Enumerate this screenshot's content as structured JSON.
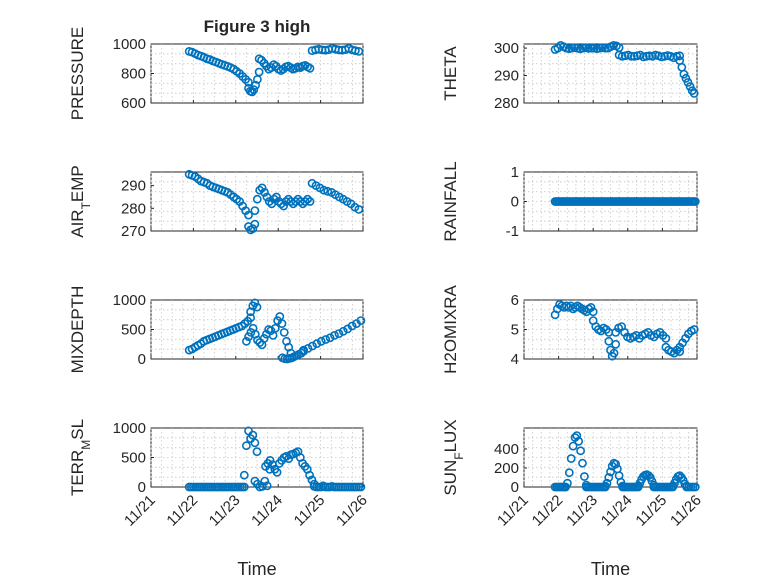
{
  "figure_title": "Figure 3 high",
  "colors": {
    "marker": "#0072BD",
    "axis": "#262626",
    "grid": "#c8c8c8"
  },
  "chart_data": [
    {
      "type": "scatter",
      "ylabel": "PRESSURE",
      "title": "Figure 3 high",
      "ylim": [
        600,
        1000
      ],
      "yticks": [
        600,
        800,
        1000
      ],
      "yticklabels": [
        "600",
        "800",
        "1000"
      ],
      "xlim": [
        0,
        5
      ],
      "grid": true,
      "show_xticklabels": false,
      "segments": [
        {
          "x0": 0.9,
          "x1": 2.3,
          "y": [
            950,
            945,
            935,
            925,
            918,
            910,
            900,
            895,
            885,
            878,
            870,
            862,
            855,
            848,
            840,
            830,
            815,
            800,
            780,
            760,
            740
          ]
        },
        {
          "x0": 2.3,
          "x1": 2.55,
          "y": [
            700,
            680,
            675,
            690,
            720,
            760,
            810
          ]
        },
        {
          "x0": 2.55,
          "x1": 3.75,
          "y": [
            900,
            890,
            870,
            850,
            830,
            840,
            860,
            850,
            830,
            820,
            830,
            845,
            850,
            840,
            830,
            835,
            845,
            840,
            850,
            855,
            845,
            835
          ]
        },
        {
          "x0": 3.8,
          "x1": 4.9,
          "y": [
            955,
            960,
            965,
            960,
            958,
            962,
            970,
            965,
            960,
            958,
            962,
            970,
            960,
            955,
            950
          ]
        }
      ]
    },
    {
      "type": "scatter",
      "ylabel": "THETA",
      "ylim": [
        280,
        301.5
      ],
      "yticks": [
        280,
        290,
        300
      ],
      "yticklabels": [
        "280",
        "290",
        "300"
      ],
      "xlim": [
        0,
        5
      ],
      "grid": true,
      "show_xticklabels": false,
      "segments": [
        {
          "x0": 0.9,
          "x1": 2.75,
          "y": [
            299.5,
            300,
            301,
            300.5,
            300,
            299.8,
            300,
            300.2,
            300,
            299.7,
            300,
            300.2,
            299.9,
            300,
            300,
            299.8,
            300,
            300.2,
            300,
            300,
            300.5,
            301,
            300.8,
            300.2
          ]
        },
        {
          "x0": 2.75,
          "x1": 4.5,
          "y": [
            297.5,
            297,
            297.2,
            297.5,
            297,
            297,
            297.2,
            297.5,
            296.8,
            297,
            297.2,
            297,
            297.5,
            297.2,
            296.8,
            297,
            297.3,
            297,
            296.5,
            297,
            297.2
          ]
        },
        {
          "x0": 4.5,
          "x1": 4.92,
          "y": [
            295.5,
            293,
            290.5,
            289,
            287.5,
            286,
            284.5,
            283.5
          ]
        }
      ]
    },
    {
      "type": "scatter",
      "ylabel": "AIR",
      "ylabel_sub": "T",
      "ylabel_rest": "EMP",
      "ylim": [
        270,
        296
      ],
      "yticks": [
        270,
        280,
        290
      ],
      "yticklabels": [
        "270",
        "280",
        "290"
      ],
      "xlim": [
        0,
        5
      ],
      "grid": true,
      "show_xticklabels": false,
      "segments": [
        {
          "x0": 0.9,
          "x1": 2.3,
          "y": [
            295,
            294.5,
            294,
            293,
            292,
            291.5,
            291,
            290,
            289.5,
            289,
            288.5,
            288,
            287.5,
            287,
            286,
            285,
            284,
            283,
            281,
            279,
            277
          ]
        },
        {
          "x0": 2.3,
          "x1": 2.45,
          "y": [
            272,
            270.5,
            271,
            273
          ]
        },
        {
          "x0": 2.45,
          "x1": 3.75,
          "y": [
            279,
            284,
            288,
            289,
            287,
            285,
            283,
            282,
            284,
            285,
            283,
            282,
            281,
            283,
            284,
            283,
            282,
            283,
            284,
            283,
            282,
            283,
            284,
            283
          ]
        },
        {
          "x0": 3.8,
          "x1": 4.9,
          "y": [
            291,
            290,
            289,
            288,
            287.5,
            287,
            286,
            285,
            284,
            283,
            282,
            280.5,
            279.5
          ]
        }
      ]
    },
    {
      "type": "scatter",
      "ylabel": "RAINFALL",
      "ylim": [
        -1,
        1
      ],
      "yticks": [
        -1,
        0,
        1
      ],
      "yticklabels": [
        "-1",
        "0",
        "1"
      ],
      "xlim": [
        0,
        5
      ],
      "grid": true,
      "show_xticklabels": false,
      "segments": [
        {
          "x0": 0.9,
          "x1": 4.95,
          "y": [
            0,
            0,
            0,
            0,
            0,
            0,
            0,
            0,
            0,
            0,
            0,
            0,
            0,
            0,
            0,
            0,
            0,
            0,
            0,
            0,
            0,
            0,
            0,
            0,
            0,
            0,
            0,
            0,
            0,
            0,
            0,
            0,
            0,
            0,
            0,
            0,
            0,
            0,
            0,
            0,
            0,
            0,
            0,
            0,
            0,
            0,
            0,
            0,
            0,
            0,
            0,
            0,
            0,
            0,
            0,
            0,
            0,
            0,
            0,
            0,
            0,
            0,
            0,
            0,
            0,
            0,
            0,
            0,
            0,
            0,
            0,
            0,
            0,
            0,
            0,
            0,
            0,
            0,
            0,
            0,
            0,
            0,
            0,
            0,
            0,
            0,
            0,
            0,
            0,
            0,
            0
          ]
        }
      ]
    },
    {
      "type": "scatter",
      "ylabel": "MIXDEPTH",
      "ylim": [
        0,
        1000
      ],
      "yticks": [
        0,
        500,
        1000
      ],
      "yticklabels": [
        "0",
        "500",
        "1000"
      ],
      "xlim": [
        0,
        5
      ],
      "grid": true,
      "show_xticklabels": false,
      "segments": [
        {
          "x0": 0.9,
          "x1": 2.35,
          "y": [
            150,
            170,
            200,
            230,
            260,
            300,
            320,
            340,
            360,
            380,
            400,
            420,
            440,
            460,
            480,
            500,
            520,
            540,
            560,
            600,
            640,
            700
          ]
        },
        {
          "x0": 2.35,
          "x1": 2.5,
          "y": [
            800,
            900,
            950,
            880
          ]
        },
        {
          "x0": 2.25,
          "x1": 3.3,
          "y": [
            300,
            380,
            450,
            520,
            420,
            320,
            280,
            240,
            350,
            420,
            500,
            480,
            400,
            520,
            650,
            720,
            600,
            450,
            300,
            200,
            100
          ]
        },
        {
          "x0": 3.1,
          "x1": 3.6,
          "y": [
            20,
            5,
            0,
            10,
            20,
            40,
            60,
            80,
            100,
            130
          ]
        },
        {
          "x0": 3.6,
          "x1": 4.95,
          "y": [
            150,
            180,
            220,
            260,
            300,
            330,
            360,
            400,
            430,
            470,
            510,
            560,
            600,
            650
          ]
        }
      ]
    },
    {
      "type": "scatter",
      "ylabel": "H2OMIXRA",
      "ylim": [
        4,
        6
      ],
      "yticks": [
        4,
        5,
        6
      ],
      "yticklabels": [
        "4",
        "5",
        "6"
      ],
      "xlim": [
        0,
        5
      ],
      "grid": true,
      "show_xticklabels": false,
      "segments": [
        {
          "x0": 0.9,
          "x1": 2.0,
          "y": [
            5.5,
            5.7,
            5.85,
            5.8,
            5.75,
            5.8,
            5.75,
            5.8,
            5.7,
            5.75,
            5.8,
            5.75,
            5.7,
            5.65,
            5.6,
            5.7,
            5.75,
            5.6
          ]
        },
        {
          "x0": 2.0,
          "x1": 2.45,
          "y": [
            5.3,
            5.1,
            5.0,
            4.95,
            5.05,
            5.0,
            4.9
          ]
        },
        {
          "x0": 2.45,
          "x1": 2.65,
          "y": [
            4.6,
            4.3,
            4.1,
            4.2,
            4.5
          ]
        },
        {
          "x0": 2.65,
          "x1": 4.1,
          "y": [
            4.9,
            5.05,
            5.1,
            4.9,
            4.75,
            4.7,
            4.75,
            4.8,
            4.7,
            4.8,
            4.85,
            4.9,
            4.8,
            4.75,
            4.85,
            4.9,
            4.8,
            4.7
          ]
        },
        {
          "x0": 4.1,
          "x1": 4.5,
          "y": [
            4.4,
            4.3,
            4.25,
            4.2,
            4.3,
            4.25
          ]
        },
        {
          "x0": 4.5,
          "x1": 4.92,
          "y": [
            4.4,
            4.55,
            4.7,
            4.85,
            4.95,
            5.0
          ]
        }
      ]
    },
    {
      "type": "scatter",
      "ylabel": "TERR",
      "ylabel_sub": "M",
      "ylabel_rest": "SL",
      "ylim": [
        0,
        1000
      ],
      "yticks": [
        0,
        500,
        1000
      ],
      "yticklabels": [
        "0",
        "500",
        "1000"
      ],
      "xlim": [
        0,
        5
      ],
      "grid": true,
      "show_xticklabels": true,
      "xticks": [
        0,
        1,
        2,
        3,
        4,
        5
      ],
      "xticklabels": [
        "11/21",
        "11/22",
        "11/23",
        "11/24",
        "11/25",
        "11/26"
      ],
      "xlabel": "Time",
      "segments": [
        {
          "x0": 0.9,
          "x1": 2.2,
          "y": [
            0,
            0,
            0,
            0,
            0,
            0,
            0,
            0,
            0,
            0,
            0,
            0,
            0,
            0,
            0,
            0,
            0,
            0,
            0,
            0,
            0,
            0,
            0,
            0,
            0,
            0,
            0
          ]
        },
        {
          "x0": 2.2,
          "x1": 2.5,
          "y": [
            200,
            700,
            950,
            820,
            880,
            750,
            600
          ]
        },
        {
          "x0": 2.45,
          "x1": 2.8,
          "y": [
            100,
            50,
            0,
            10,
            100,
            20,
            300
          ]
        },
        {
          "x0": 2.7,
          "x1": 3.85,
          "y": [
            350,
            400,
            450,
            380,
            300,
            250,
            400,
            450,
            500,
            520,
            480,
            550,
            560,
            580,
            600,
            500,
            400,
            350,
            300,
            200,
            120,
            50
          ]
        },
        {
          "x0": 3.85,
          "x1": 4.95,
          "y": [
            10,
            0,
            0,
            0,
            20,
            0,
            0,
            0,
            10,
            0,
            0,
            0,
            0,
            0,
            0,
            0,
            0,
            0,
            0,
            0,
            0,
            0
          ]
        }
      ]
    },
    {
      "type": "scatter",
      "ylabel": "SUN",
      "ylabel_sub": "F",
      "ylabel_rest": "LUX",
      "ylim": [
        0,
        620
      ],
      "yticks": [
        0,
        200,
        400
      ],
      "yticklabels": [
        "0",
        "200",
        "400"
      ],
      "xlim": [
        0,
        5
      ],
      "grid": true,
      "show_xticklabels": true,
      "xticks": [
        0,
        1,
        2,
        3,
        4,
        5
      ],
      "xticklabels": [
        "11/21",
        "11/22",
        "11/23",
        "11/24",
        "11/25",
        "11/26"
      ],
      "xlabel": "Time",
      "segments": [
        {
          "x0": 0.9,
          "x1": 1.2,
          "y": [
            0,
            0,
            0,
            0,
            0,
            0,
            0
          ]
        },
        {
          "x0": 1.2,
          "x1": 1.8,
          "y": [
            0,
            40,
            150,
            300,
            430,
            520,
            540,
            480,
            380,
            250,
            110,
            20
          ]
        },
        {
          "x0": 1.8,
          "x1": 2.35,
          "y": [
            0,
            0,
            0,
            0,
            0,
            0,
            0,
            0,
            0,
            0,
            0
          ]
        },
        {
          "x0": 2.35,
          "x1": 2.85,
          "y": [
            10,
            40,
            100,
            160,
            220,
            250,
            240,
            190,
            120,
            50,
            10
          ]
        },
        {
          "x0": 2.85,
          "x1": 3.3,
          "y": [
            0,
            0,
            0,
            0,
            0,
            0,
            0,
            0,
            0,
            0
          ]
        },
        {
          "x0": 3.3,
          "x1": 3.75,
          "y": [
            10,
            40,
            80,
            110,
            125,
            130,
            120,
            100,
            60,
            20
          ]
        },
        {
          "x0": 3.75,
          "x1": 4.3,
          "y": [
            0,
            0,
            0,
            0,
            0,
            0,
            0,
            0,
            0,
            0,
            0
          ]
        },
        {
          "x0": 4.3,
          "x1": 4.7,
          "y": [
            10,
            40,
            80,
            110,
            120,
            100,
            70,
            30,
            10
          ]
        },
        {
          "x0": 4.7,
          "x1": 4.95,
          "y": [
            0,
            0,
            0,
            0,
            0
          ]
        }
      ]
    }
  ]
}
